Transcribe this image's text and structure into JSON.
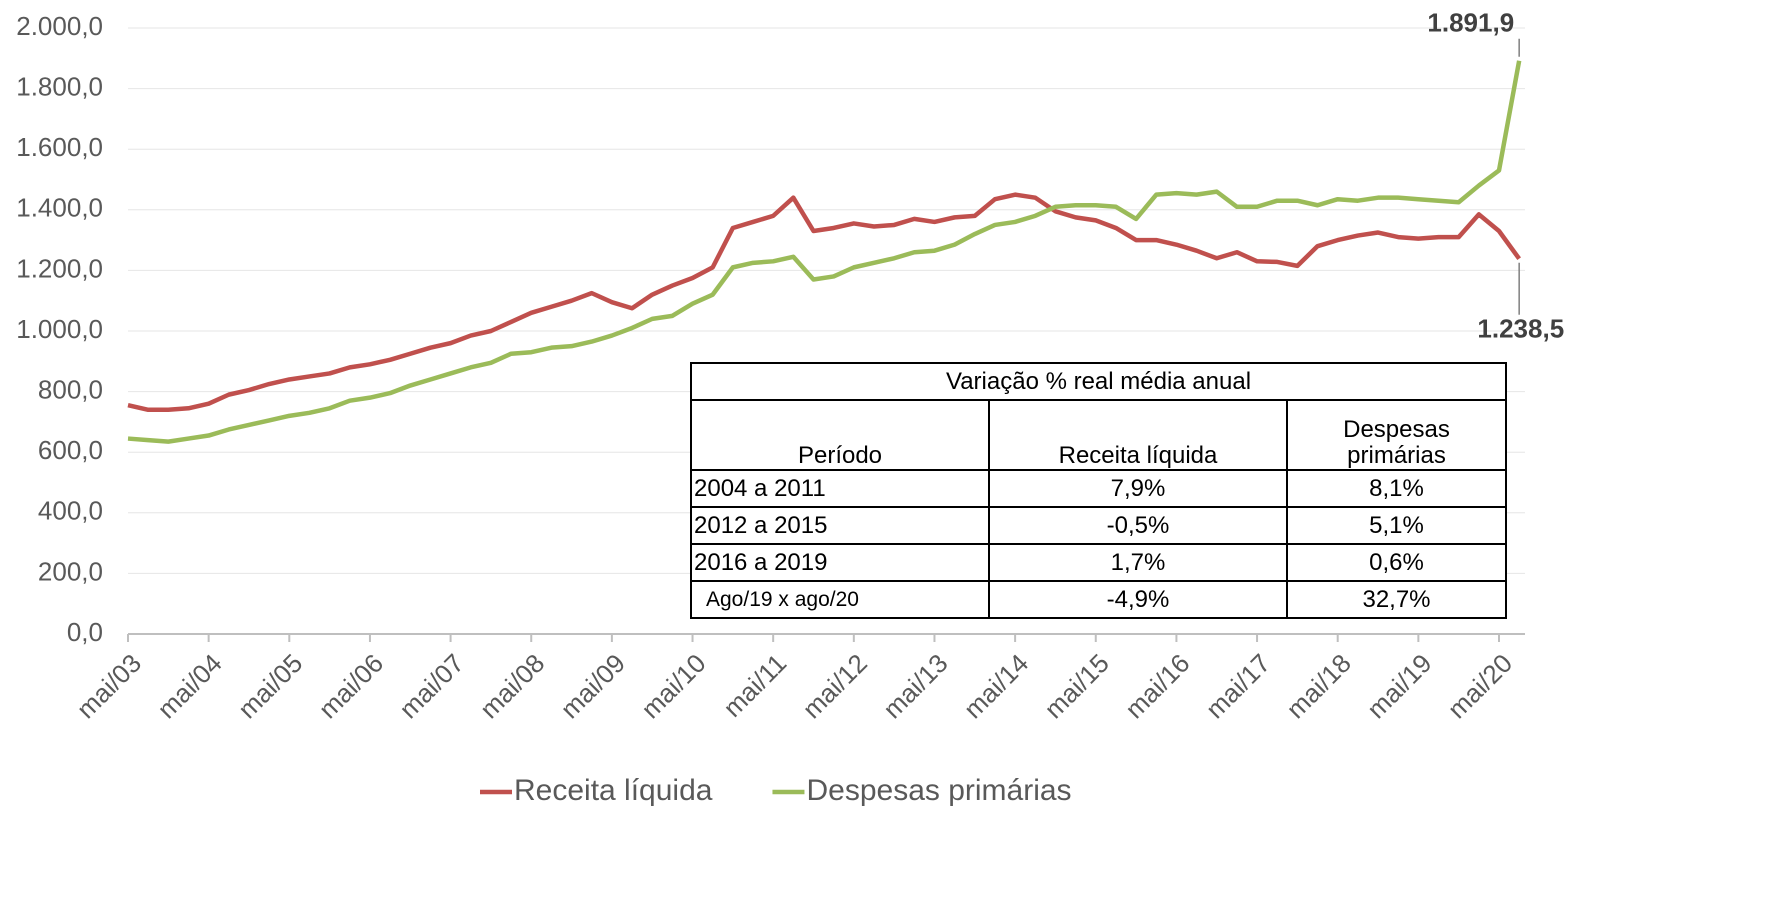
{
  "chart_data": {
    "type": "line",
    "categories": [
      "mai/03",
      null,
      null,
      null,
      "mai/04",
      null,
      null,
      null,
      "mai/05",
      null,
      null,
      null,
      "mai/06",
      null,
      null,
      null,
      "mai/07",
      null,
      null,
      null,
      "mai/08",
      null,
      null,
      null,
      "mai/09",
      null,
      null,
      null,
      "mai/10",
      null,
      null,
      null,
      "mai/11",
      null,
      null,
      null,
      "mai/12",
      null,
      null,
      null,
      "mai/13",
      null,
      null,
      null,
      "mai/14",
      null,
      null,
      null,
      "mai/15",
      null,
      null,
      null,
      "mai/16",
      null,
      null,
      null,
      "mai/17",
      null,
      null,
      null,
      "mai/18",
      null,
      null,
      null,
      "mai/19",
      null,
      null,
      null,
      "mai/20",
      null
    ],
    "series": [
      {
        "name": "Receita líquida",
        "color": "#c0504d",
        "values": [
          755,
          740,
          740,
          745,
          760,
          790,
          805,
          825,
          840,
          850,
          860,
          880,
          890,
          905,
          925,
          945,
          960,
          985,
          1000,
          1030,
          1060,
          1080,
          1100,
          1125,
          1095,
          1075,
          1120,
          1150,
          1175,
          1210,
          1340,
          1360,
          1380,
          1440,
          1330,
          1340,
          1355,
          1345,
          1350,
          1370,
          1360,
          1375,
          1380,
          1435,
          1450,
          1440,
          1395,
          1375,
          1365,
          1340,
          1300,
          1300,
          1285,
          1265,
          1240,
          1260,
          1230,
          1228,
          1215,
          1280,
          1300,
          1315,
          1325,
          1310,
          1305,
          1310,
          1310,
          1385,
          1330,
          1238.5
        ],
        "value_labels": [
          null,
          null,
          null,
          null,
          null,
          null,
          null,
          null,
          null,
          null,
          null,
          null,
          null,
          null,
          null,
          null,
          null,
          null,
          null,
          null,
          null,
          null,
          null,
          null,
          null,
          null,
          null,
          null,
          null,
          null,
          null,
          null,
          null,
          null,
          null,
          null,
          null,
          null,
          null,
          null,
          null,
          null,
          null,
          null,
          null,
          null,
          null,
          null,
          null,
          null,
          null,
          null,
          null,
          null,
          null,
          null,
          null,
          null,
          null,
          null,
          null,
          null,
          null,
          null,
          null,
          null,
          null,
          null,
          null,
          "1.238,5"
        ]
      },
      {
        "name": "Despesas primárias",
        "color": "#9bbb59",
        "values": [
          645,
          640,
          635,
          645,
          655,
          675,
          690,
          705,
          720,
          730,
          745,
          770,
          780,
          795,
          820,
          840,
          860,
          880,
          895,
          925,
          930,
          945,
          950,
          965,
          985,
          1010,
          1040,
          1050,
          1090,
          1120,
          1210,
          1225,
          1230,
          1245,
          1170,
          1180,
          1210,
          1225,
          1240,
          1260,
          1265,
          1285,
          1320,
          1350,
          1360,
          1380,
          1410,
          1415,
          1415,
          1410,
          1370,
          1450,
          1455,
          1450,
          1460,
          1410,
          1410,
          1430,
          1430,
          1415,
          1435,
          1430,
          1440,
          1440,
          1435,
          1430,
          1425,
          1480,
          1530,
          1891.9
        ],
        "value_labels": [
          null,
          null,
          null,
          null,
          null,
          null,
          null,
          null,
          null,
          null,
          null,
          null,
          null,
          null,
          null,
          null,
          null,
          null,
          null,
          null,
          null,
          null,
          null,
          null,
          null,
          null,
          null,
          null,
          null,
          null,
          null,
          null,
          null,
          null,
          null,
          null,
          null,
          null,
          null,
          null,
          null,
          null,
          null,
          null,
          null,
          null,
          null,
          null,
          null,
          null,
          null,
          null,
          null,
          null,
          null,
          null,
          null,
          null,
          null,
          null,
          null,
          null,
          null,
          null,
          null,
          null,
          null,
          null,
          null,
          "1.891,9"
        ]
      }
    ],
    "ylim": [
      0,
      2000
    ],
    "yticks": [
      {
        "value": 0,
        "label": "0,0"
      },
      {
        "value": 200,
        "label": "200,0"
      },
      {
        "value": 400,
        "label": "400,0"
      },
      {
        "value": 600,
        "label": "600,0"
      },
      {
        "value": 800,
        "label": "800,0"
      },
      {
        "value": 1000,
        "label": "1.000,0"
      },
      {
        "value": 1200,
        "label": "1.200,0"
      },
      {
        "value": 1400,
        "label": "1.400,0"
      },
      {
        "value": 1600,
        "label": "1.600,0"
      },
      {
        "value": 1800,
        "label": "1.800,0"
      },
      {
        "value": 2000,
        "label": "2.000,0"
      }
    ],
    "grid": true,
    "legend": "bottom"
  },
  "table": {
    "title": "Variação % real média anual",
    "header": [
      "Período",
      "Receita líquida",
      "Despesas primárias"
    ],
    "rows": [
      [
        "2004 a 2011",
        "7,9%",
        "8,1%"
      ],
      [
        "2012 a 2015",
        "-0,5%",
        "5,1%"
      ],
      [
        "2016 a 2019",
        "1,7%",
        "0,6%"
      ],
      [
        "Ago/19 x ago/20",
        "-4,9%",
        "32,7%"
      ]
    ]
  }
}
